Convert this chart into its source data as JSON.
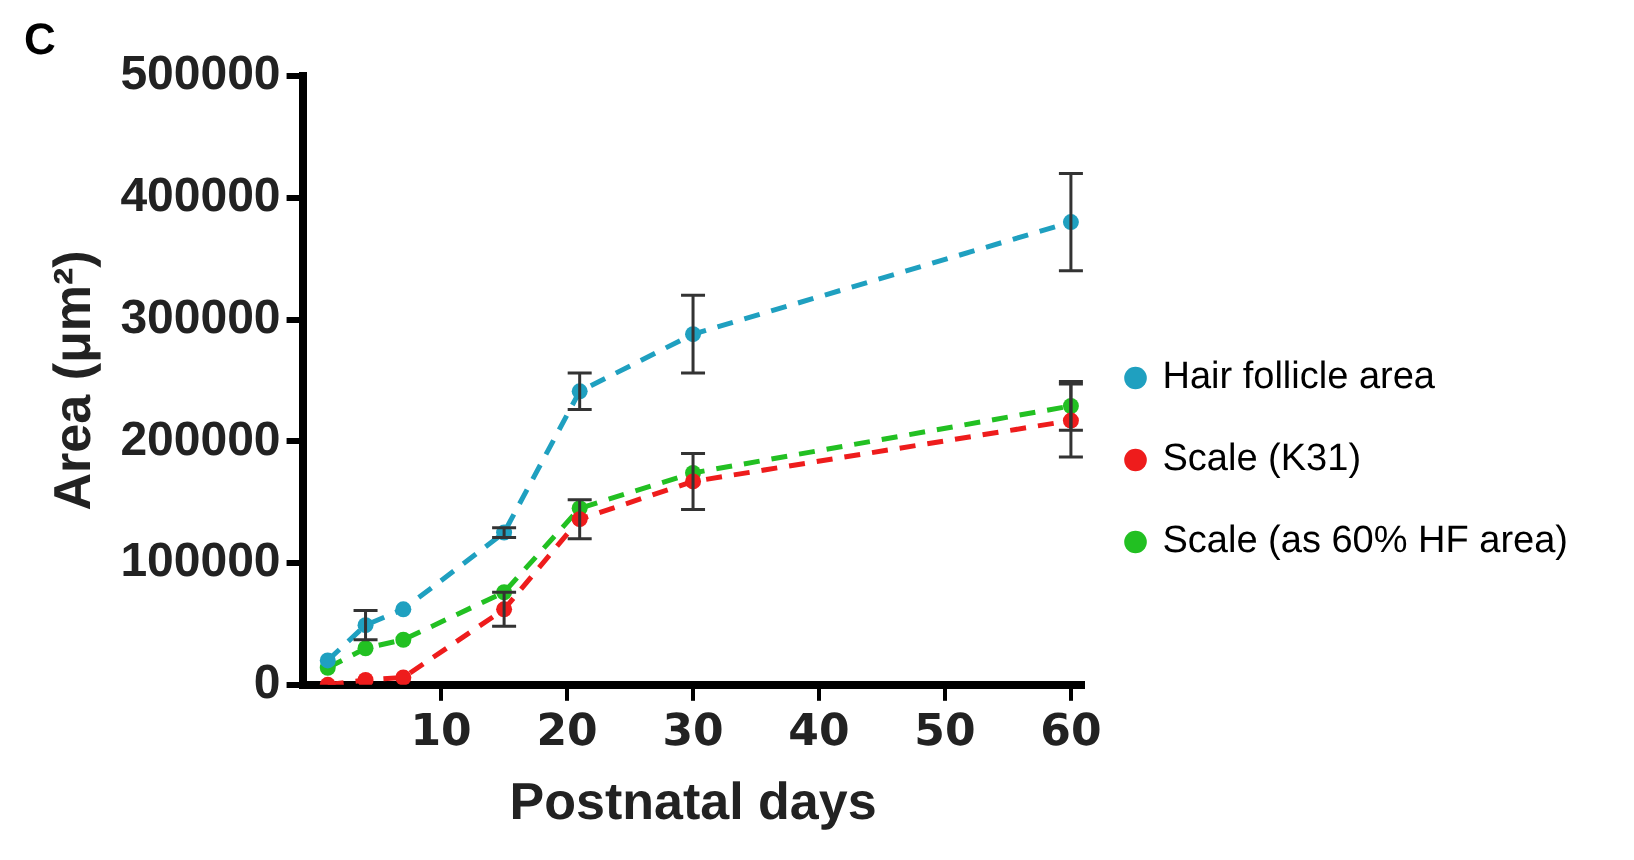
{
  "chart_data": {
    "type": "line",
    "annotations": [
      "C"
    ],
    "xlabel": "Postnatal days",
    "ylabel": "Area (μm²)",
    "x": [
      1,
      4,
      7,
      15,
      21,
      30,
      60
    ],
    "xlim": [
      -1,
      61
    ],
    "xticks": [
      10,
      20,
      30,
      40,
      50,
      60
    ],
    "ylim": [
      0,
      500000
    ],
    "yticks": [
      0,
      100000,
      200000,
      300000,
      400000,
      500000
    ],
    "grid": false,
    "legend": "right",
    "marker": "circle",
    "line_style": "dashed",
    "series": [
      {
        "name": "Hair follicle area",
        "color": "#1fa0c0",
        "values": [
          20000,
          49000,
          62000,
          125000,
          241000,
          288000,
          380000
        ],
        "errors": [
          null,
          12000,
          null,
          4000,
          15000,
          32000,
          40000
        ]
      },
      {
        "name": "Scale (K31)",
        "color": "#ee1c1c",
        "values": [
          0,
          4000,
          6000,
          62000,
          136000,
          167000,
          217000
        ],
        "errors": [
          null,
          null,
          null,
          14000,
          16000,
          23000,
          30000
        ]
      },
      {
        "name": "Scale (as 60% HF area)",
        "color": "#22c022",
        "values": [
          14000,
          30000,
          37000,
          76000,
          145000,
          174000,
          229000
        ],
        "errors": [
          null,
          null,
          null,
          null,
          null,
          null,
          20000
        ]
      }
    ]
  }
}
